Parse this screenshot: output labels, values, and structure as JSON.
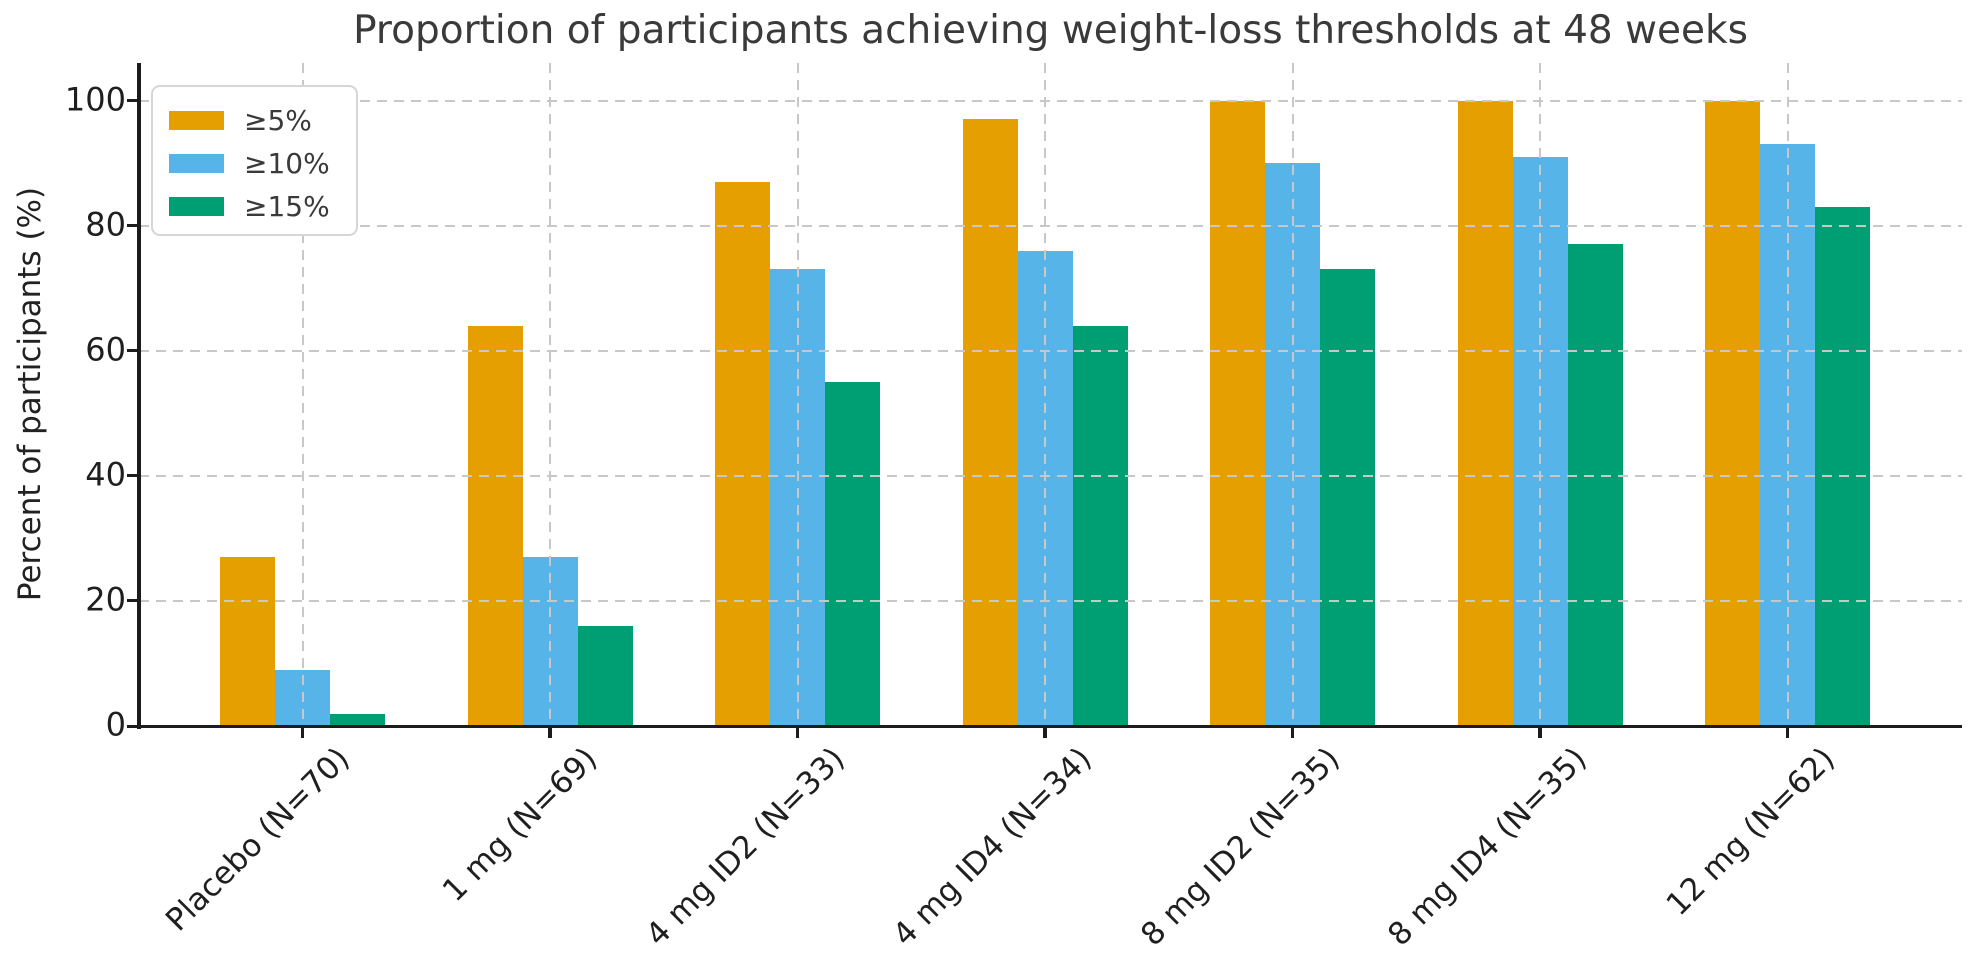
{
  "figure": {
    "title": "Proportion of participants achieving weight-loss thresholds at 48 weeks",
    "ylabel": "Percent of participants (%)"
  },
  "chart_data": {
    "type": "bar",
    "title": "Proportion of participants achieving weight-loss thresholds at 48 weeks",
    "xlabel": "",
    "ylabel": "Percent of participants (%)",
    "categories": [
      "Placebo (N=70)",
      "1 mg (N=69)",
      "4 mg ID2 (N=33)",
      "4 mg ID4 (N=34)",
      "8 mg ID2 (N=35)",
      "8 mg ID4 (N=35)",
      "12 mg (N=62)"
    ],
    "series": [
      {
        "name": "≥5%",
        "color": "#E69F00",
        "values": [
          27,
          64,
          87,
          97,
          100,
          100,
          100
        ]
      },
      {
        "name": "≥10%",
        "color": "#56B4E9",
        "values": [
          9,
          27,
          73,
          76,
          90,
          91,
          93
        ]
      },
      {
        "name": "≥15%",
        "color": "#009E73",
        "values": [
          2,
          16,
          55,
          64,
          73,
          77,
          83
        ]
      }
    ],
    "yticks": [
      0,
      20,
      40,
      60,
      80,
      100
    ],
    "ylim": [
      0,
      106
    ],
    "grid": true,
    "grid_style": "dashed",
    "gridlines": "horizontal-and-vertical",
    "legend_position": "upper left",
    "background_color": "#ffffff",
    "tick_color": "#1f1f1f",
    "title_color": "#3a3a3a"
  }
}
